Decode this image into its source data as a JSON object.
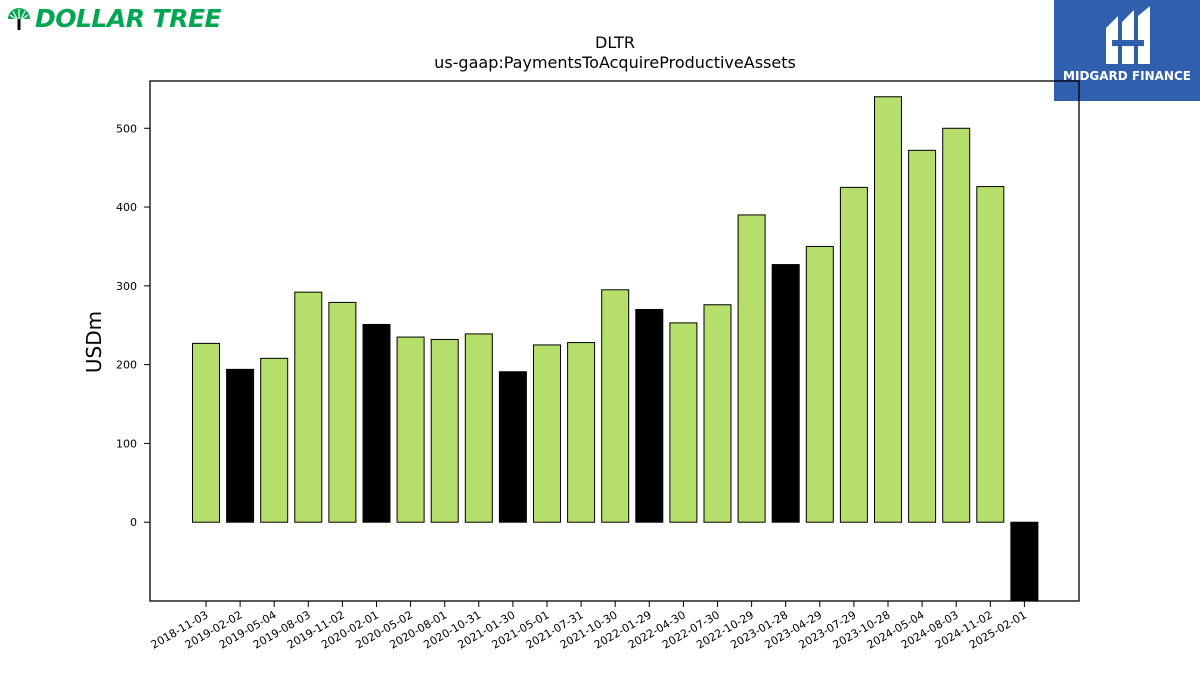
{
  "brand_left": {
    "text": "DOLLAR TREE",
    "color": "#00a651"
  },
  "brand_right": {
    "text": "MIDGARD FINANCE",
    "color": "#2f5fad"
  },
  "chart_data": {
    "type": "bar",
    "title": "DLTR",
    "subtitle": "us-gaap:PaymentsToAcquireProductiveAssets",
    "xlabel": "",
    "ylabel": "USDm",
    "ylim": [
      -100,
      560
    ],
    "yticks": [
      0,
      100,
      200,
      300,
      400,
      500
    ],
    "grid": false,
    "colors": {
      "quarter": "#b5de6b",
      "fiscal_year": "#000000",
      "edge": "#000000"
    },
    "categories": [
      "2018-11-03",
      "2019-02-02",
      "2019-05-04",
      "2019-08-03",
      "2019-11-02",
      "2020-02-01",
      "2020-05-02",
      "2020-08-01",
      "2020-10-31",
      "2021-01-30",
      "2021-05-01",
      "2021-07-31",
      "2021-10-30",
      "2022-01-29",
      "2022-04-30",
      "2022-07-30",
      "2022-10-29",
      "2023-01-28",
      "2023-04-29",
      "2023-07-29",
      "2023-10-28",
      "2024-05-04",
      "2024-08-03",
      "2024-11-02",
      "2025-02-01"
    ],
    "values": [
      227,
      194,
      208,
      292,
      279,
      251,
      235,
      232,
      239,
      191,
      225,
      228,
      295,
      270,
      253,
      276,
      390,
      327,
      350,
      425,
      540,
      472,
      500,
      426,
      -108
    ],
    "bar_color_keys": [
      "quarter",
      "fiscal_year",
      "quarter",
      "quarter",
      "quarter",
      "fiscal_year",
      "quarter",
      "quarter",
      "quarter",
      "fiscal_year",
      "quarter",
      "quarter",
      "quarter",
      "fiscal_year",
      "quarter",
      "quarter",
      "quarter",
      "fiscal_year",
      "quarter",
      "quarter",
      "quarter",
      "quarter",
      "quarter",
      "quarter",
      "fiscal_year"
    ]
  }
}
